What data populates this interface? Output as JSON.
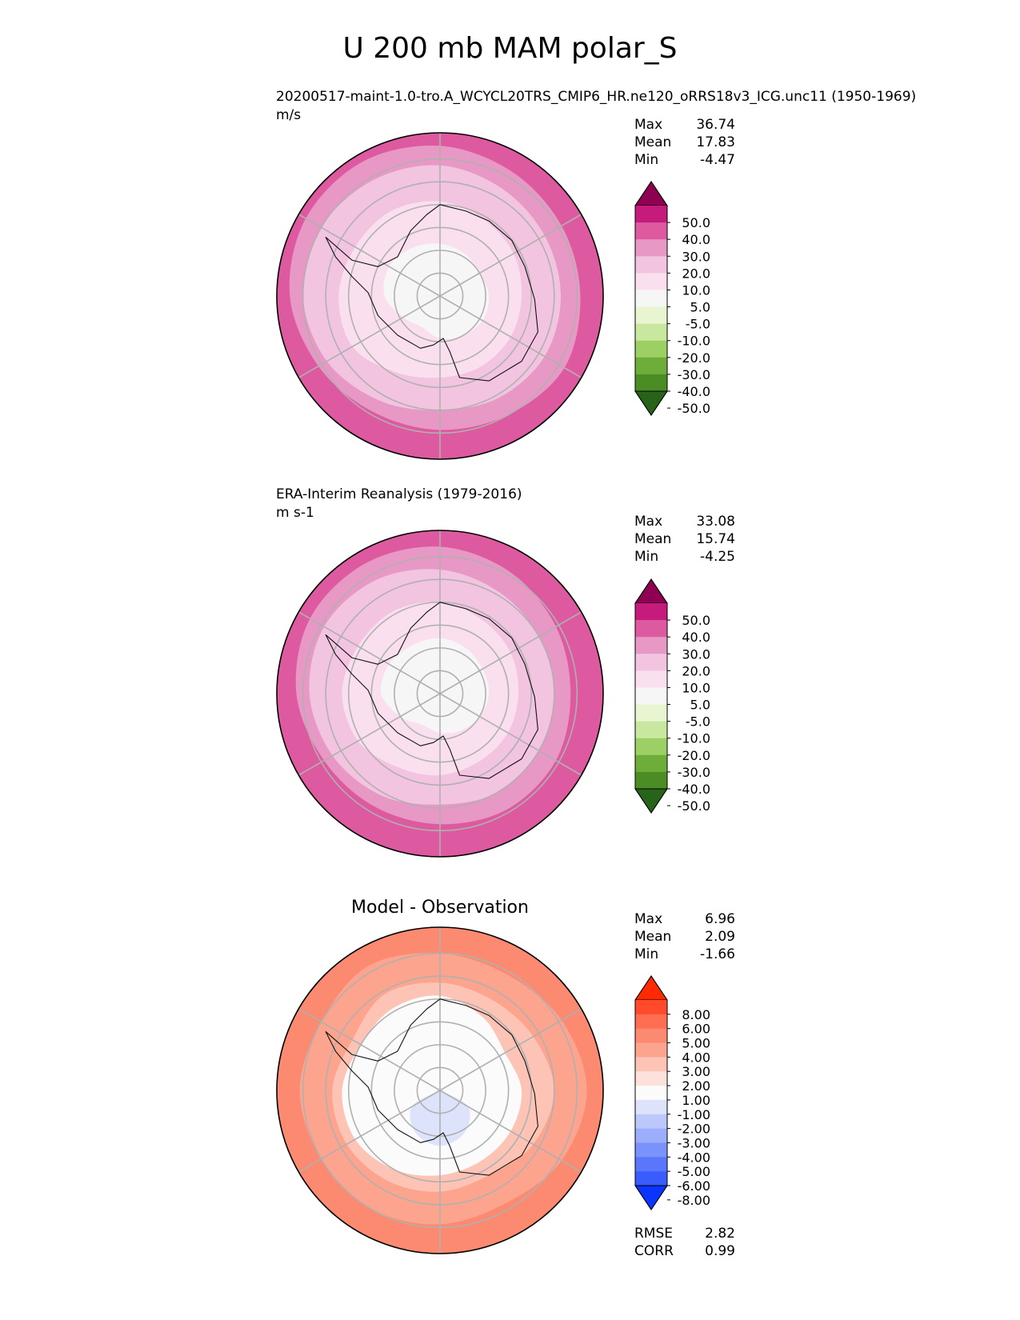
{
  "figure": {
    "title": "U 200 mb MAM polar_S"
  },
  "chart_data": [
    {
      "type": "heatmap",
      "projection": "south polar stereographic",
      "title": "20200517-maint-1.0-tro.A_WCYCL20TRS_CMIP6_HR.ne120_oRRS18v3_ICG.unc11 (1950-1969)",
      "units": "m/s",
      "stats": {
        "max": "36.74",
        "mean": "17.83",
        "min": "-4.47"
      },
      "stat_labels": {
        "max": "Max",
        "mean": "Mean",
        "min": "Min"
      },
      "levels": [
        "50.0",
        "40.0",
        "30.0",
        "20.0",
        "10.0",
        "5.0",
        "-5.0",
        "-10.0",
        "-20.0",
        "-30.0",
        "-40.0",
        "-50.0"
      ],
      "band_colors": [
        "#8e0152",
        "#c51b7d",
        "#de5aa0",
        "#e898c5",
        "#f2c4e0",
        "#fae0ef",
        "#f6f6f6",
        "#e8f5d0",
        "#c8e8a0",
        "#9ccf64",
        "#6fad3a",
        "#4c8c24",
        "#276419"
      ],
      "contours": [
        {
          "value": "30-40",
          "color": "#de5aa0",
          "r": [
            0.98,
            0.98,
            0.99,
            1.0,
            1.0,
            0.99,
            0.96,
            0.98,
            0.99,
            1.0,
            1.0,
            1.0
          ]
        },
        {
          "value": "20-30",
          "color": "#e898c5",
          "r": [
            0.92,
            0.88,
            0.86,
            0.86,
            0.88,
            0.84,
            0.82,
            0.82,
            0.86,
            0.92,
            0.95,
            0.95
          ]
        },
        {
          "value": "10-20",
          "color": "#f2c4e0",
          "r": [
            0.8,
            0.76,
            0.74,
            0.74,
            0.74,
            0.72,
            0.7,
            0.74,
            0.8,
            0.84,
            0.84,
            0.82
          ]
        },
        {
          "value": "5-10",
          "color": "#fae0ef",
          "r": [
            0.58,
            0.54,
            0.52,
            0.5,
            0.5,
            0.5,
            0.5,
            0.54,
            0.62,
            0.62,
            0.6,
            0.6
          ]
        },
        {
          "value": "-5-5",
          "color": "#f6f6f6",
          "r": [
            0.32,
            0.3,
            0.28,
            0.3,
            0.3,
            0.28,
            0.26,
            0.22,
            0.26,
            0.34,
            0.36,
            0.34
          ]
        }
      ]
    },
    {
      "type": "heatmap",
      "projection": "south polar stereographic",
      "title": "ERA-Interim Reanalysis (1979-2016)",
      "units": "m s-1",
      "stats": {
        "max": "33.08",
        "mean": "15.74",
        "min": "-4.25"
      },
      "stat_labels": {
        "max": "Max",
        "mean": "Mean",
        "min": "Min"
      },
      "levels": [
        "50.0",
        "40.0",
        "30.0",
        "20.0",
        "10.0",
        "5.0",
        "-5.0",
        "-10.0",
        "-20.0",
        "-30.0",
        "-40.0",
        "-50.0"
      ],
      "band_colors": [
        "#8e0152",
        "#c51b7d",
        "#de5aa0",
        "#e898c5",
        "#f2c4e0",
        "#fae0ef",
        "#f6f6f6",
        "#e8f5d0",
        "#c8e8a0",
        "#9ccf64",
        "#6fad3a",
        "#4c8c24",
        "#276419"
      ],
      "contours": [
        {
          "value": "30-40",
          "color": "#de5aa0",
          "r": [
            1.0,
            1.0,
            1.0,
            1.0,
            1.0,
            1.0,
            0.97,
            1.0,
            1.0,
            1.0,
            1.0,
            1.0
          ]
        },
        {
          "value": "20-30",
          "color": "#e898c5",
          "r": [
            0.9,
            0.86,
            0.82,
            0.8,
            0.82,
            0.82,
            0.8,
            0.8,
            0.82,
            0.88,
            0.92,
            0.92
          ]
        },
        {
          "value": "10-20",
          "color": "#f2c4e0",
          "r": [
            0.76,
            0.72,
            0.7,
            0.7,
            0.7,
            0.7,
            0.68,
            0.72,
            0.76,
            0.8,
            0.82,
            0.8
          ]
        },
        {
          "value": "5-10",
          "color": "#fae0ef",
          "r": [
            0.56,
            0.52,
            0.5,
            0.48,
            0.48,
            0.48,
            0.5,
            0.52,
            0.58,
            0.6,
            0.58,
            0.58
          ]
        },
        {
          "value": "-5-5",
          "color": "#f6f6f6",
          "r": [
            0.34,
            0.32,
            0.3,
            0.3,
            0.28,
            0.26,
            0.24,
            0.22,
            0.28,
            0.36,
            0.36,
            0.34
          ]
        }
      ]
    },
    {
      "type": "heatmap",
      "projection": "south polar stereographic",
      "title": "Model - Observation",
      "units": "",
      "stats": {
        "max": "6.96",
        "mean": "2.09",
        "min": "-1.66"
      },
      "stat_labels": {
        "max": "Max",
        "mean": "Mean",
        "min": "Min"
      },
      "metrics": {
        "rmse": "2.82",
        "corr": "0.99"
      },
      "metric_labels": {
        "rmse": "RMSE",
        "corr": "CORR"
      },
      "levels": [
        "8.00",
        "6.00",
        "5.00",
        "4.00",
        "3.00",
        "2.00",
        "1.00",
        "-1.00",
        "-2.00",
        "-3.00",
        "-4.00",
        "-5.00",
        "-6.00",
        "-8.00"
      ],
      "band_colors": [
        "#ff2a00",
        "#ff4b2b",
        "#ff6e50",
        "#fc8a70",
        "#fca48e",
        "#fdc4b6",
        "#fde2db",
        "#fbfbfb",
        "#dde3fb",
        "#bcc8fb",
        "#9badfb",
        "#7a92fc",
        "#5a77fc",
        "#3a5cfc",
        "#0a34ff"
      ],
      "contours": [
        {
          "value": "3-4",
          "color": "#fc8a70",
          "r": [
            1.0,
            1.0,
            1.0,
            1.0,
            1.0,
            1.0,
            1.0,
            1.0,
            1.0,
            1.0,
            1.0,
            1.0
          ]
        },
        {
          "value": "2-3",
          "color": "#fca48e",
          "r": [
            0.84,
            0.82,
            0.86,
            0.9,
            0.86,
            0.8,
            0.82,
            0.84,
            0.84,
            0.86,
            0.84,
            0.88
          ]
        },
        {
          "value": "1-2",
          "color": "#fdc4b6",
          "r": [
            0.66,
            0.64,
            0.66,
            0.7,
            0.66,
            0.6,
            0.62,
            0.64,
            0.66,
            0.66,
            0.62,
            0.68
          ]
        },
        {
          "value": "-1-1",
          "color": "#fbfbfb",
          "r": [
            0.58,
            0.52,
            0.46,
            0.5,
            0.5,
            0.5,
            0.52,
            0.56,
            0.6,
            0.6,
            0.56,
            0.58
          ]
        },
        {
          "value": "-2--1",
          "color": "#dde3fb",
          "r": [
            0.0,
            0.0,
            0.0,
            0.0,
            0.2,
            0.3,
            0.34,
            0.3,
            0.2,
            0.0,
            0.0,
            0.0
          ]
        }
      ]
    }
  ]
}
